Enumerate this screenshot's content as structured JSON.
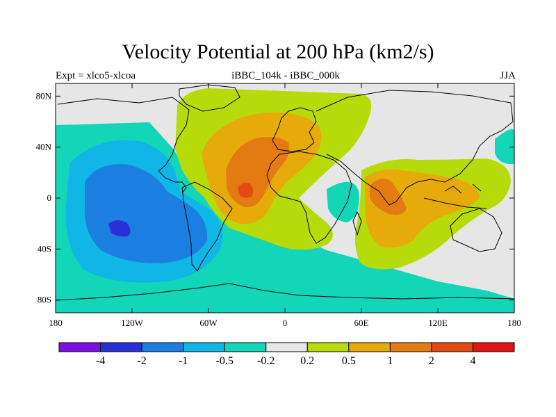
{
  "title": "Velocity Potential at 200 hPa (km2/s)",
  "subtitle_left": "Expt = xlco5-xlcoa",
  "subtitle_center": "iBBC_104k - iBBC_000k",
  "subtitle_right": "JJA",
  "y_ticks": [
    {
      "lat": 80,
      "label": "80N"
    },
    {
      "lat": 40,
      "label": "40N"
    },
    {
      "lat": 0,
      "label": "0"
    },
    {
      "lat": -40,
      "label": "40S"
    },
    {
      "lat": -80,
      "label": "80S"
    }
  ],
  "x_ticks": [
    {
      "lon": -180,
      "label": "180"
    },
    {
      "lon": -120,
      "label": "120W"
    },
    {
      "lon": -60,
      "label": "60W"
    },
    {
      "lon": 0,
      "label": "0"
    },
    {
      "lon": 60,
      "label": "60E"
    },
    {
      "lon": 120,
      "label": "120E"
    },
    {
      "lon": 180,
      "label": "180"
    }
  ],
  "colorbar": {
    "colors": [
      "#7a10e0",
      "#2a30d8",
      "#1a7fe0",
      "#10b6e6",
      "#13d6b8",
      "#e6e6e6",
      "#b6da0a",
      "#e6aa0a",
      "#e37a12",
      "#e34a12",
      "#e01414"
    ],
    "labels": [
      "-4",
      "-2",
      "-1",
      "-0.5",
      "-0.2",
      "0.2",
      "0.5",
      "1",
      "2",
      "4"
    ]
  },
  "domain": {
    "lon": [
      -180,
      180
    ],
    "lat": [
      -90,
      90
    ]
  }
}
